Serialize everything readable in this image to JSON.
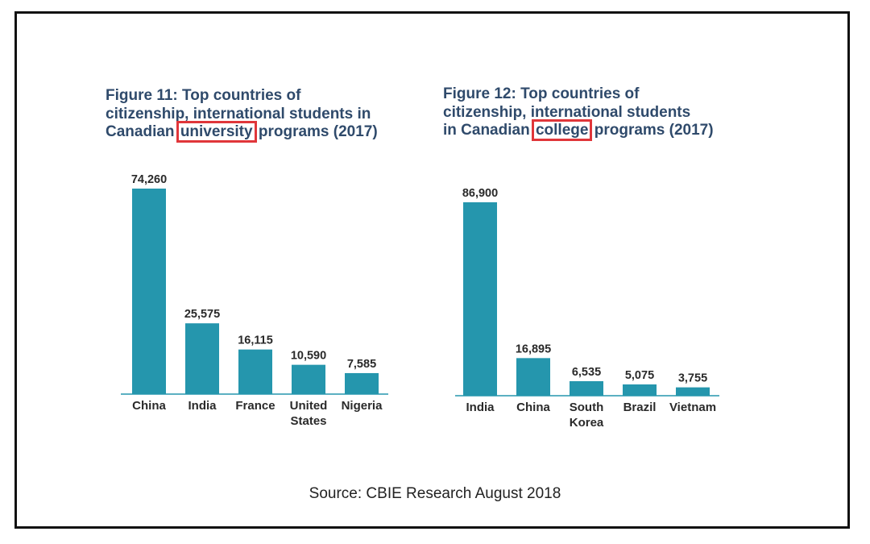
{
  "chart_data": [
    {
      "type": "bar",
      "title_parts": [
        "Figure 11: Top countries of",
        "citizenship, international students in",
        "Canadian ",
        "university",
        " programs (2017)"
      ],
      "categories": [
        [
          "China"
        ],
        [
          "India"
        ],
        [
          "France"
        ],
        [
          "United",
          "States"
        ],
        [
          "Nigeria"
        ]
      ],
      "values": [
        74260,
        25575,
        16115,
        10590,
        7585
      ],
      "value_labels": [
        "74,260",
        "25,575",
        "16,115",
        "10,590",
        "7,585"
      ],
      "ylim": [
        0,
        74260
      ],
      "bar_color": "#2596ad",
      "highlight_color": "#e0363a"
    },
    {
      "type": "bar",
      "title_parts": [
        "Figure 12: Top countries of",
        "citizenship, international students",
        "in Canadian ",
        "college",
        " programs (2017)"
      ],
      "categories": [
        [
          "India"
        ],
        [
          "China"
        ],
        [
          "South",
          "Korea"
        ],
        [
          "Brazil"
        ],
        [
          "Vietnam"
        ]
      ],
      "values": [
        86900,
        16895,
        6535,
        5075,
        3755
      ],
      "value_labels": [
        "86,900",
        "16,895",
        "6,535",
        "5,075",
        "3,755"
      ],
      "ylim": [
        0,
        86900
      ],
      "bar_color": "#2596ad",
      "highlight_color": "#e0363a"
    }
  ],
  "source": "Source: CBIE Research August 2018"
}
